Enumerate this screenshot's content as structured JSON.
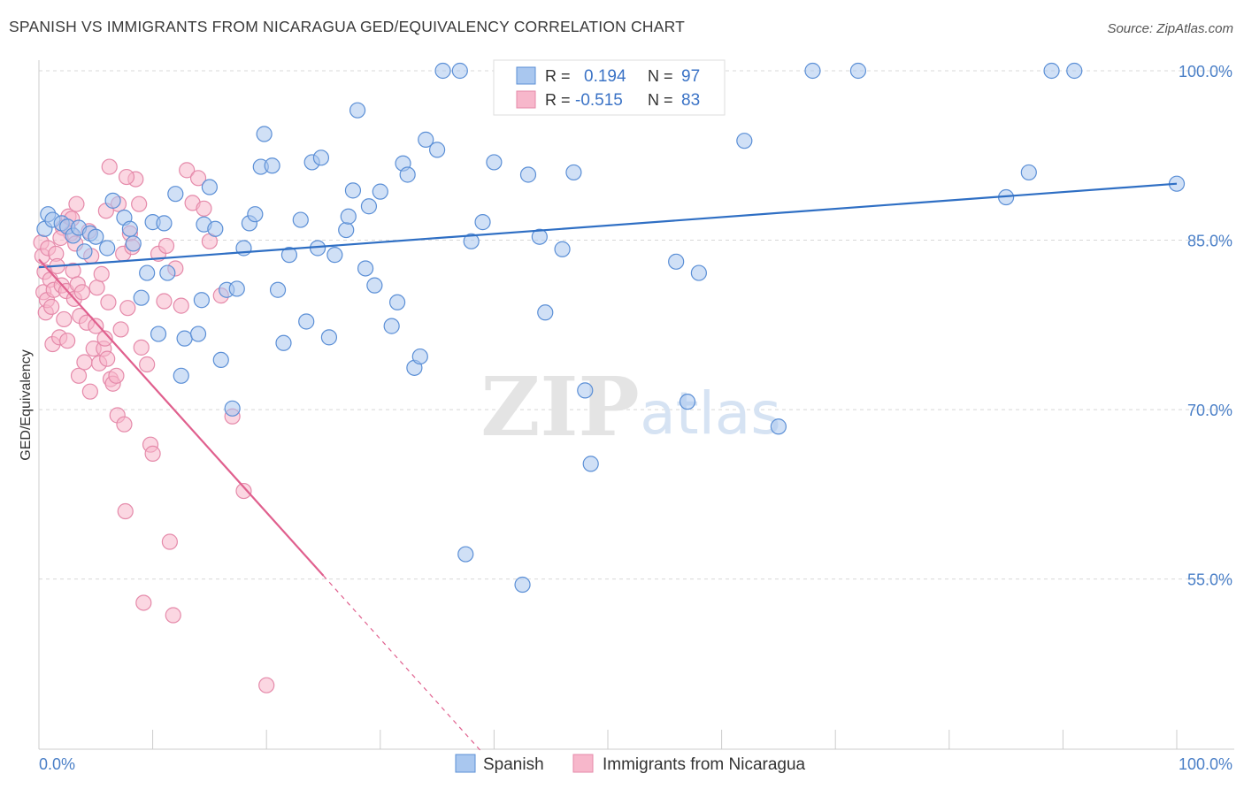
{
  "title": "SPANISH VS IMMIGRANTS FROM NICARAGUA GED/EQUIVALENCY CORRELATION CHART",
  "source": "Source: ZipAtlas.com",
  "watermark": {
    "zip": "ZIP",
    "atlas": "atlas"
  },
  "legend": {
    "r_label": "R =",
    "n_label": "N =",
    "rows": [
      {
        "r": "0.194",
        "n": "97"
      },
      {
        "r": "-0.515",
        "n": "83"
      }
    ]
  },
  "colors": {
    "spanish_fill": "#a9c7ef",
    "spanish_stroke": "#5b8fd6",
    "spanish_line": "#2f6fc4",
    "nicaragua_fill": "#f7b7cb",
    "nicaragua_stroke": "#e58aaa",
    "nicaragua_line": "#e0608e"
  },
  "chart_data": {
    "type": "scatter",
    "title": "SPANISH VS IMMIGRANTS FROM NICARAGUA GED/EQUIVALENCY CORRELATION CHART",
    "xlabel": "",
    "ylabel": "GED/Equivalency",
    "xlim": [
      0,
      100
    ],
    "ylim": [
      40,
      102
    ],
    "x_tick_labels": [
      "0.0%",
      "100.0%"
    ],
    "y_ticks": [
      55,
      70,
      85,
      100
    ],
    "y_tick_labels": [
      "55.0%",
      "70.0%",
      "85.0%",
      "100.0%"
    ],
    "grid": true,
    "legend_position": "top-center",
    "series": [
      {
        "name": "Spanish",
        "r": 0.194,
        "n": 97,
        "trend": {
          "x": [
            0,
            100
          ],
          "y": [
            82.6,
            90.0
          ]
        },
        "points": [
          [
            0.5,
            86
          ],
          [
            0.8,
            87.3
          ],
          [
            1.2,
            86.8
          ],
          [
            2,
            86.5
          ],
          [
            2.5,
            86.2
          ],
          [
            3,
            85.4
          ],
          [
            3.5,
            86.1
          ],
          [
            4,
            84
          ],
          [
            4.5,
            85.6
          ],
          [
            5,
            85.3
          ],
          [
            6,
            84.3
          ],
          [
            6.5,
            88.5
          ],
          [
            7.5,
            87
          ],
          [
            8,
            86
          ],
          [
            8.3,
            84.7
          ],
          [
            9,
            79.9
          ],
          [
            9.5,
            82.1
          ],
          [
            10,
            86.6
          ],
          [
            10.5,
            76.7
          ],
          [
            11,
            86.5
          ],
          [
            11.3,
            82.1
          ],
          [
            12,
            89.1
          ],
          [
            12.5,
            73
          ],
          [
            12.8,
            76.3
          ],
          [
            14,
            76.7
          ],
          [
            14.3,
            79.7
          ],
          [
            14.5,
            86.4
          ],
          [
            15,
            89.7
          ],
          [
            15.5,
            86
          ],
          [
            16,
            74.4
          ],
          [
            16.5,
            80.6
          ],
          [
            17,
            70.1
          ],
          [
            17.4,
            80.7
          ],
          [
            18,
            84.3
          ],
          [
            18.5,
            86.5
          ],
          [
            19,
            87.3
          ],
          [
            19.5,
            91.5
          ],
          [
            19.8,
            94.4
          ],
          [
            20.5,
            91.6
          ],
          [
            21,
            80.6
          ],
          [
            21.5,
            75.9
          ],
          [
            22,
            83.7
          ],
          [
            23,
            86.8
          ],
          [
            23.5,
            77.8
          ],
          [
            24,
            91.9
          ],
          [
            24.5,
            84.3
          ],
          [
            24.8,
            92.3
          ],
          [
            25.5,
            76.4
          ],
          [
            26,
            83.7
          ],
          [
            27,
            85.9
          ],
          [
            27.2,
            87.1
          ],
          [
            27.6,
            89.4
          ],
          [
            28,
            96.5
          ],
          [
            28.7,
            82.5
          ],
          [
            29,
            88
          ],
          [
            29.5,
            81
          ],
          [
            30,
            89.3
          ],
          [
            31,
            77.4
          ],
          [
            31.5,
            79.5
          ],
          [
            32,
            91.8
          ],
          [
            32.4,
            90.8
          ],
          [
            33,
            73.7
          ],
          [
            33.5,
            74.7
          ],
          [
            34,
            93.9
          ],
          [
            35,
            93
          ],
          [
            35.5,
            100
          ],
          [
            37,
            100
          ],
          [
            37.5,
            57.2
          ],
          [
            38,
            84.9
          ],
          [
            39,
            86.6
          ],
          [
            40,
            91.9
          ],
          [
            41,
            100
          ],
          [
            42,
            100
          ],
          [
            42.5,
            54.5
          ],
          [
            43,
            90.8
          ],
          [
            44,
            85.3
          ],
          [
            44.5,
            78.6
          ],
          [
            45,
            100
          ],
          [
            46,
            84.2
          ],
          [
            47,
            91
          ],
          [
            48,
            71.7
          ],
          [
            48.5,
            65.2
          ],
          [
            50,
            100
          ],
          [
            51,
            100
          ],
          [
            52,
            99.6
          ],
          [
            53,
            99.5
          ],
          [
            55,
            99.5
          ],
          [
            56,
            83.1
          ],
          [
            57,
            70.7
          ],
          [
            58,
            82.1
          ],
          [
            62,
            93.8
          ],
          [
            65,
            68.5
          ],
          [
            68,
            100
          ],
          [
            72,
            100
          ],
          [
            85,
            88.8
          ],
          [
            87,
            91
          ],
          [
            89,
            100
          ],
          [
            91,
            100
          ],
          [
            100,
            90
          ]
        ]
      },
      {
        "name": "Immigrants from Nicaragua",
        "r": -0.515,
        "n": 83,
        "trend": {
          "x": [
            0,
            25
          ],
          "y": [
            83.3,
            55.3
          ]
        },
        "trend_dashed": {
          "x": [
            25,
            39
          ],
          "y": [
            55.3,
            39.6
          ]
        },
        "points": [
          [
            0.2,
            84.8
          ],
          [
            0.3,
            83.6
          ],
          [
            0.4,
            80.4
          ],
          [
            0.5,
            82.2
          ],
          [
            0.6,
            78.6
          ],
          [
            0.7,
            79.7
          ],
          [
            0.8,
            84.3
          ],
          [
            1,
            81.5
          ],
          [
            1.1,
            79.1
          ],
          [
            1.2,
            75.8
          ],
          [
            1.3,
            80.6
          ],
          [
            1.5,
            83.8
          ],
          [
            1.6,
            82.7
          ],
          [
            1.8,
            76.4
          ],
          [
            2,
            81
          ],
          [
            2.1,
            86.1
          ],
          [
            2.2,
            78
          ],
          [
            2.4,
            80.5
          ],
          [
            2.5,
            76.1
          ],
          [
            2.6,
            87.1
          ],
          [
            2.8,
            85.6
          ],
          [
            3,
            82.3
          ],
          [
            3.1,
            79.8
          ],
          [
            3.2,
            84.7
          ],
          [
            3.4,
            81.1
          ],
          [
            3.5,
            73
          ],
          [
            3.6,
            78.3
          ],
          [
            3.8,
            80.4
          ],
          [
            4,
            74.2
          ],
          [
            4.2,
            77.7
          ],
          [
            4.4,
            85.8
          ],
          [
            4.5,
            71.6
          ],
          [
            4.6,
            83.6
          ],
          [
            4.8,
            75.4
          ],
          [
            5,
            77.4
          ],
          [
            5.1,
            80.8
          ],
          [
            5.3,
            74.1
          ],
          [
            5.5,
            82
          ],
          [
            5.7,
            75.4
          ],
          [
            5.8,
            76.3
          ],
          [
            6,
            74.5
          ],
          [
            6.1,
            79.5
          ],
          [
            6.3,
            72.7
          ],
          [
            6.5,
            72.3
          ],
          [
            6.8,
            73
          ],
          [
            6.9,
            69.5
          ],
          [
            7,
            88.2
          ],
          [
            7.2,
            77.1
          ],
          [
            7.4,
            83.8
          ],
          [
            7.5,
            68.7
          ],
          [
            7.6,
            61
          ],
          [
            7.8,
            79
          ],
          [
            8,
            85.6
          ],
          [
            8.2,
            84.4
          ],
          [
            8.5,
            90.4
          ],
          [
            8.8,
            88.2
          ],
          [
            9,
            75.5
          ],
          [
            9.2,
            52.9
          ],
          [
            9.5,
            74
          ],
          [
            9.8,
            66.9
          ],
          [
            10,
            66.1
          ],
          [
            10.5,
            83.8
          ],
          [
            11,
            79.6
          ],
          [
            11.2,
            84.5
          ],
          [
            11.5,
            58.3
          ],
          [
            11.8,
            51.8
          ],
          [
            12,
            82.5
          ],
          [
            12.5,
            79.2
          ],
          [
            13,
            91.2
          ],
          [
            13.5,
            88.3
          ],
          [
            14,
            90.5
          ],
          [
            14.5,
            87.8
          ],
          [
            15,
            84.9
          ],
          [
            16,
            80.1
          ],
          [
            17,
            69.4
          ],
          [
            18,
            62.8
          ],
          [
            20,
            45.6
          ],
          [
            6.2,
            91.5
          ],
          [
            7.7,
            90.6
          ],
          [
            5.9,
            87.6
          ],
          [
            3.3,
            88.2
          ],
          [
            2.9,
            86.9
          ],
          [
            1.9,
            85.2
          ]
        ]
      }
    ]
  },
  "bottom_legend": [
    "Spanish",
    "Immigrants from Nicaragua"
  ]
}
